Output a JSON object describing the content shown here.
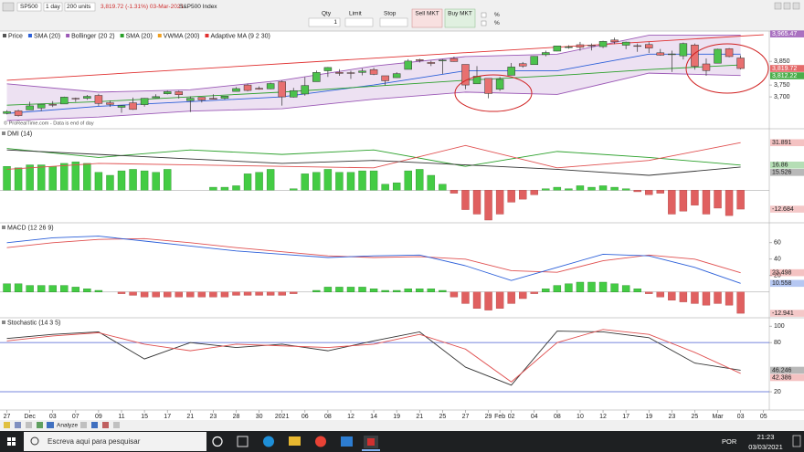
{
  "toolbar": {
    "symbol": "SP500",
    "period": "1 day",
    "units": "200 units",
    "quote": "3,819.72 (-1.31%) 03-Mar-2021",
    "instrument": "S&P500 Index",
    "qty_label": "Qty",
    "qty": "1",
    "limit_label": "Limit",
    "stop_label": "Stop",
    "sell": "Sell MKT",
    "buy": "Buy MKT",
    "pct1": "%",
    "pct2": "%"
  },
  "chart_data": [
    {
      "type": "candlestick",
      "legend": [
        {
          "name": "Price",
          "color": "#555555"
        },
        {
          "name": "SMA (20)",
          "color": "#2b5fd9"
        },
        {
          "name": "Bollinger (20 2)",
          "color": "#9b59b6"
        },
        {
          "name": "SMA (20)",
          "color": "#2aa02a"
        },
        {
          "name": "VWMA (200)",
          "color": "#f0a020"
        },
        {
          "name": "Adaptive MA (9 2 30)",
          "color": "#e03030"
        }
      ],
      "xlim": [
        -0.6,
        66.5
      ],
      "ylim": [
        3577,
        3970
      ],
      "yticks": [
        {
          "value": 3700,
          "label": "3,700"
        },
        {
          "value": 3750,
          "label": "3,750"
        },
        {
          "value": 3850,
          "label": "3,850"
        }
      ],
      "price_labels": [
        {
          "value": 3965.47,
          "label": "3,965.47",
          "color": "#9b59b6"
        },
        {
          "value": 3819.72,
          "label": "3,819.72",
          "color": "#e05050"
        },
        {
          "value": 3812.22,
          "label": "3,812.22",
          "color": "#2aa02a"
        }
      ],
      "up_color": "#4cc24c",
      "down_color": "#e87070",
      "open": [
        3630,
        3641,
        3645,
        3653,
        3668,
        3670,
        3694,
        3694,
        3706,
        3675,
        3656,
        3675,
        3667,
        3696,
        3713,
        3722,
        3684,
        3698,
        3694,
        3694,
        3723,
        3750,
        3736,
        3734,
        3764,
        3699,
        3712,
        3764,
        3810,
        3803,
        3802,
        3803,
        3815,
        3789,
        3781,
        3816,
        3857,
        3845,
        3852,
        3862,
        3837,
        3755,
        3778,
        3732,
        3791,
        3840,
        3836,
        3878,
        3893,
        3911,
        3920,
        3918,
        3912,
        3940,
        3918,
        3916,
        3921,
        3886,
        3878,
        3873,
        3919,
        3839,
        3842,
        3903,
        3864
      ],
      "high": [
        3644,
        3646,
        3679,
        3670,
        3682,
        3701,
        3697,
        3708,
        3713,
        3685,
        3665,
        3697,
        3695,
        3711,
        3726,
        3726,
        3702,
        3698,
        3711,
        3703,
        3741,
        3756,
        3744,
        3760,
        3769,
        3738,
        3783,
        3811,
        3826,
        3817,
        3810,
        3820,
        3823,
        3789,
        3804,
        3859,
        3861,
        3852,
        3859,
        3870,
        3837,
        3830,
        3778,
        3784,
        3843,
        3847,
        3872,
        3895,
        3915,
        3918,
        3932,
        3925,
        3937,
        3950,
        3933,
        3925,
        3931,
        3902,
        3895,
        3929,
        3925,
        3862,
        3903,
        3906,
        3875
      ],
      "low": [
        3626,
        3617,
        3645,
        3640,
        3657,
        3670,
        3679,
        3688,
        3662,
        3658,
        3633,
        3645,
        3659,
        3695,
        3710,
        3693,
        3636,
        3676,
        3689,
        3689,
        3723,
        3723,
        3730,
        3732,
        3663,
        3697,
        3705,
        3764,
        3784,
        3789,
        3776,
        3791,
        3792,
        3749,
        3780,
        3816,
        3845,
        3830,
        3797,
        3848,
        3732,
        3755,
        3694,
        3725,
        3791,
        3823,
        3836,
        3871,
        3892,
        3903,
        3895,
        3896,
        3906,
        3923,
        3901,
        3890,
        3885,
        3874,
        3805,
        3858,
        3815,
        3789,
        3842,
        3867,
        3816
      ],
      "close": [
        3638,
        3621,
        3662,
        3669,
        3666,
        3699,
        3691,
        3702,
        3672,
        3668,
        3663,
        3647,
        3694,
        3701,
        3722,
        3709,
        3694,
        3687,
        3690,
        3703,
        3735,
        3727,
        3732,
        3756,
        3700,
        3726,
        3748,
        3803,
        3824,
        3799,
        3801,
        3809,
        3795,
        3768,
        3798,
        3851,
        3853,
        3841,
        3855,
        3849,
        3750,
        3787,
        3714,
        3774,
        3826,
        3830,
        3871,
        3887,
        3915,
        3911,
        3909,
        3916,
        3934,
        3932,
        3931,
        3913,
        3906,
        3876,
        3881,
        3925,
        3829,
        3811,
        3901,
        3870,
        3819.72
      ],
      "band": {
        "color": "#9b59b6",
        "x": [
          0,
          8,
          16,
          24,
          32,
          40,
          48,
          56,
          64
        ],
        "upper": [
          3755,
          3720,
          3730,
          3770,
          3830,
          3870,
          3880,
          3960,
          3960
        ],
        "lower": [
          3600,
          3615,
          3640,
          3650,
          3690,
          3720,
          3710,
          3800,
          3790
        ]
      },
      "lines": [
        {
          "color": "#2b5fd9",
          "x": [
            0,
            8,
            16,
            24,
            32,
            40,
            48,
            56,
            64
          ],
          "values": [
            3630,
            3660,
            3680,
            3700,
            3750,
            3810,
            3810,
            3880,
            3880
          ]
        },
        {
          "color": "#2aa02a",
          "x": [
            0,
            8,
            16,
            24,
            32,
            40,
            48,
            56,
            64
          ],
          "values": [
            3665,
            3680,
            3700,
            3720,
            3745,
            3770,
            3790,
            3815,
            3835
          ]
        },
        {
          "color": "#e03030",
          "x": [
            0,
            66
          ],
          "values": [
            3770,
            3962
          ]
        }
      ],
      "watermark": "© ProRealTime.com - Data is end of day"
    },
    {
      "type": "indicator",
      "title": "DMI (14)",
      "xlim": [
        -0.6,
        66.5
      ],
      "ylim": [
        -20,
        40
      ],
      "lines": [
        {
          "color": "#2aa02a",
          "x": [
            0,
            8,
            16,
            24,
            32,
            40,
            48,
            56,
            64
          ],
          "values": [
            28,
            22,
            27,
            24,
            27,
            16,
            26,
            22,
            16.86
          ]
        },
        {
          "color": "#e05050",
          "x": [
            0,
            8,
            16,
            24,
            32,
            40,
            48,
            56,
            64
          ],
          "values": [
            14,
            18,
            17,
            16,
            15,
            30,
            15,
            20,
            31.891
          ]
        },
        {
          "color": "#333333",
          "x": [
            0,
            8,
            16,
            24,
            32,
            40,
            48,
            56,
            64
          ],
          "values": [
            27,
            24,
            21,
            18,
            20,
            17,
            14,
            10,
            15.526
          ]
        }
      ],
      "bars": {
        "up_color": "#44cc44",
        "down_color": "#e06060",
        "end_label": true,
        "values": [
          16,
          15,
          17,
          17,
          16,
          18,
          19,
          18,
          12,
          10,
          13,
          14,
          13,
          12,
          14,
          0,
          0,
          0,
          2,
          2,
          3,
          11,
          12,
          14,
          0,
          1,
          11,
          12,
          14,
          12,
          12,
          13,
          13,
          4,
          5,
          13,
          14,
          10,
          4,
          -2,
          -13,
          -16,
          -20,
          -16,
          -8,
          -6,
          -3,
          1,
          2,
          1,
          3,
          2,
          3,
          2,
          1,
          -1,
          -3,
          -2,
          -16,
          -14,
          -10,
          -16,
          -12,
          -17,
          -12.684
        ]
      }
    },
    {
      "type": "indicator",
      "title": "MACD (12 26 9)",
      "xlim": [
        -0.6,
        66.5
      ],
      "ylim": [
        -28,
        82
      ],
      "yticks": [
        20,
        40,
        60
      ],
      "y2lim": [
        -14,
        41
      ],
      "lines": [
        {
          "color": "#e05050",
          "x": [
            0,
            4,
            8,
            12,
            16,
            20,
            24,
            28,
            32,
            36,
            40,
            44,
            48,
            52,
            56,
            60,
            64
          ],
          "values": [
            54,
            60,
            64,
            65,
            60,
            54,
            49,
            44,
            42,
            43,
            40,
            26,
            24,
            38,
            45,
            40,
            23.498
          ]
        },
        {
          "color": "#2b5fd9",
          "x": [
            0,
            4,
            8,
            12,
            16,
            20,
            24,
            28,
            32,
            36,
            40,
            44,
            48,
            52,
            56,
            60,
            64
          ],
          "values": [
            60,
            66,
            68,
            62,
            56,
            50,
            46,
            42,
            44,
            45,
            32,
            14,
            30,
            46,
            44,
            30,
            10.558
          ]
        }
      ],
      "bars": {
        "up_color": "#44cc44",
        "down_color": "#e06060",
        "end_label": true,
        "axis": "y2",
        "values": [
          5,
          5,
          4,
          4,
          4,
          4,
          3,
          2,
          1,
          0,
          -1,
          -2,
          -3,
          -3,
          -3,
          -3,
          -3,
          -3,
          -3,
          -3,
          -2,
          -2,
          -2,
          -2,
          -2,
          -1,
          0,
          1,
          3,
          3,
          3,
          3,
          2,
          1,
          1,
          2,
          2,
          2,
          1,
          -3,
          -7,
          -10,
          -11,
          -10,
          -7,
          -4,
          -1,
          2,
          4,
          5,
          6,
          6,
          6,
          5,
          4,
          2,
          -1,
          -3,
          -5,
          -6,
          -7,
          -8,
          -7,
          -8,
          -12.941
        ]
      }
    },
    {
      "type": "indicator",
      "title": "Stochastic (14 3 5)",
      "xlim": [
        -0.6,
        66.5
      ],
      "ylim": [
        0,
        108
      ],
      "yticks": [
        20,
        80,
        100
      ],
      "levels": [
        20,
        80
      ],
      "level_color": "#4a5fd0",
      "lines": [
        {
          "color": "#333333",
          "x": [
            0,
            4,
            8,
            12,
            16,
            20,
            24,
            28,
            32,
            36,
            40,
            44,
            48,
            52,
            56,
            60,
            64
          ],
          "values": [
            85,
            90,
            93,
            60,
            80,
            74,
            78,
            70,
            82,
            93,
            50,
            28,
            94,
            93,
            86,
            55,
            46.246
          ]
        },
        {
          "color": "#e05050",
          "x": [
            0,
            4,
            8,
            12,
            16,
            20,
            24,
            28,
            32,
            36,
            40,
            44,
            48,
            52,
            56,
            60,
            64
          ],
          "values": [
            82,
            88,
            92,
            78,
            70,
            78,
            76,
            74,
            78,
            90,
            72,
            32,
            80,
            96,
            90,
            68,
            42.386
          ]
        }
      ],
      "xticks": [
        {
          "value": 0,
          "label": "27"
        },
        {
          "value": 2,
          "label": "Dec"
        },
        {
          "value": 4,
          "label": "03"
        },
        {
          "value": 6,
          "label": "07"
        },
        {
          "value": 8,
          "label": "09"
        },
        {
          "value": 10,
          "label": "11"
        },
        {
          "value": 12,
          "label": "15"
        },
        {
          "value": 14,
          "label": "17"
        },
        {
          "value": 16,
          "label": "21"
        },
        {
          "value": 18,
          "label": "23"
        },
        {
          "value": 20,
          "label": "28"
        },
        {
          "value": 22,
          "label": "30"
        },
        {
          "value": 24,
          "label": "2021"
        },
        {
          "value": 26,
          "label": "06"
        },
        {
          "value": 28,
          "label": "08"
        },
        {
          "value": 30,
          "label": "12"
        },
        {
          "value": 32,
          "label": "14"
        },
        {
          "value": 34,
          "label": "19"
        },
        {
          "value": 36,
          "label": "21"
        },
        {
          "value": 38,
          "label": "25"
        },
        {
          "value": 40,
          "label": "27"
        },
        {
          "value": 42,
          "label": "29"
        },
        {
          "value": 43,
          "label": "Feb"
        },
        {
          "value": 44,
          "label": "02"
        },
        {
          "value": 46,
          "label": "04"
        },
        {
          "value": 48,
          "label": "08"
        },
        {
          "value": 50,
          "label": "10"
        },
        {
          "value": 52,
          "label": "12"
        },
        {
          "value": 54,
          "label": "17"
        },
        {
          "value": 56,
          "label": "19"
        },
        {
          "value": 58,
          "label": "23"
        },
        {
          "value": 60,
          "label": "25"
        },
        {
          "value": 62,
          "label": "Mar"
        },
        {
          "value": 64,
          "label": "03"
        },
        {
          "value": 66,
          "label": "05"
        }
      ]
    }
  ],
  "analyze": "Analyze",
  "taskbar": {
    "search": "Escreva aqui para pesquisar",
    "lang": "POR",
    "time": "21:23",
    "date": "03/03/2021"
  }
}
